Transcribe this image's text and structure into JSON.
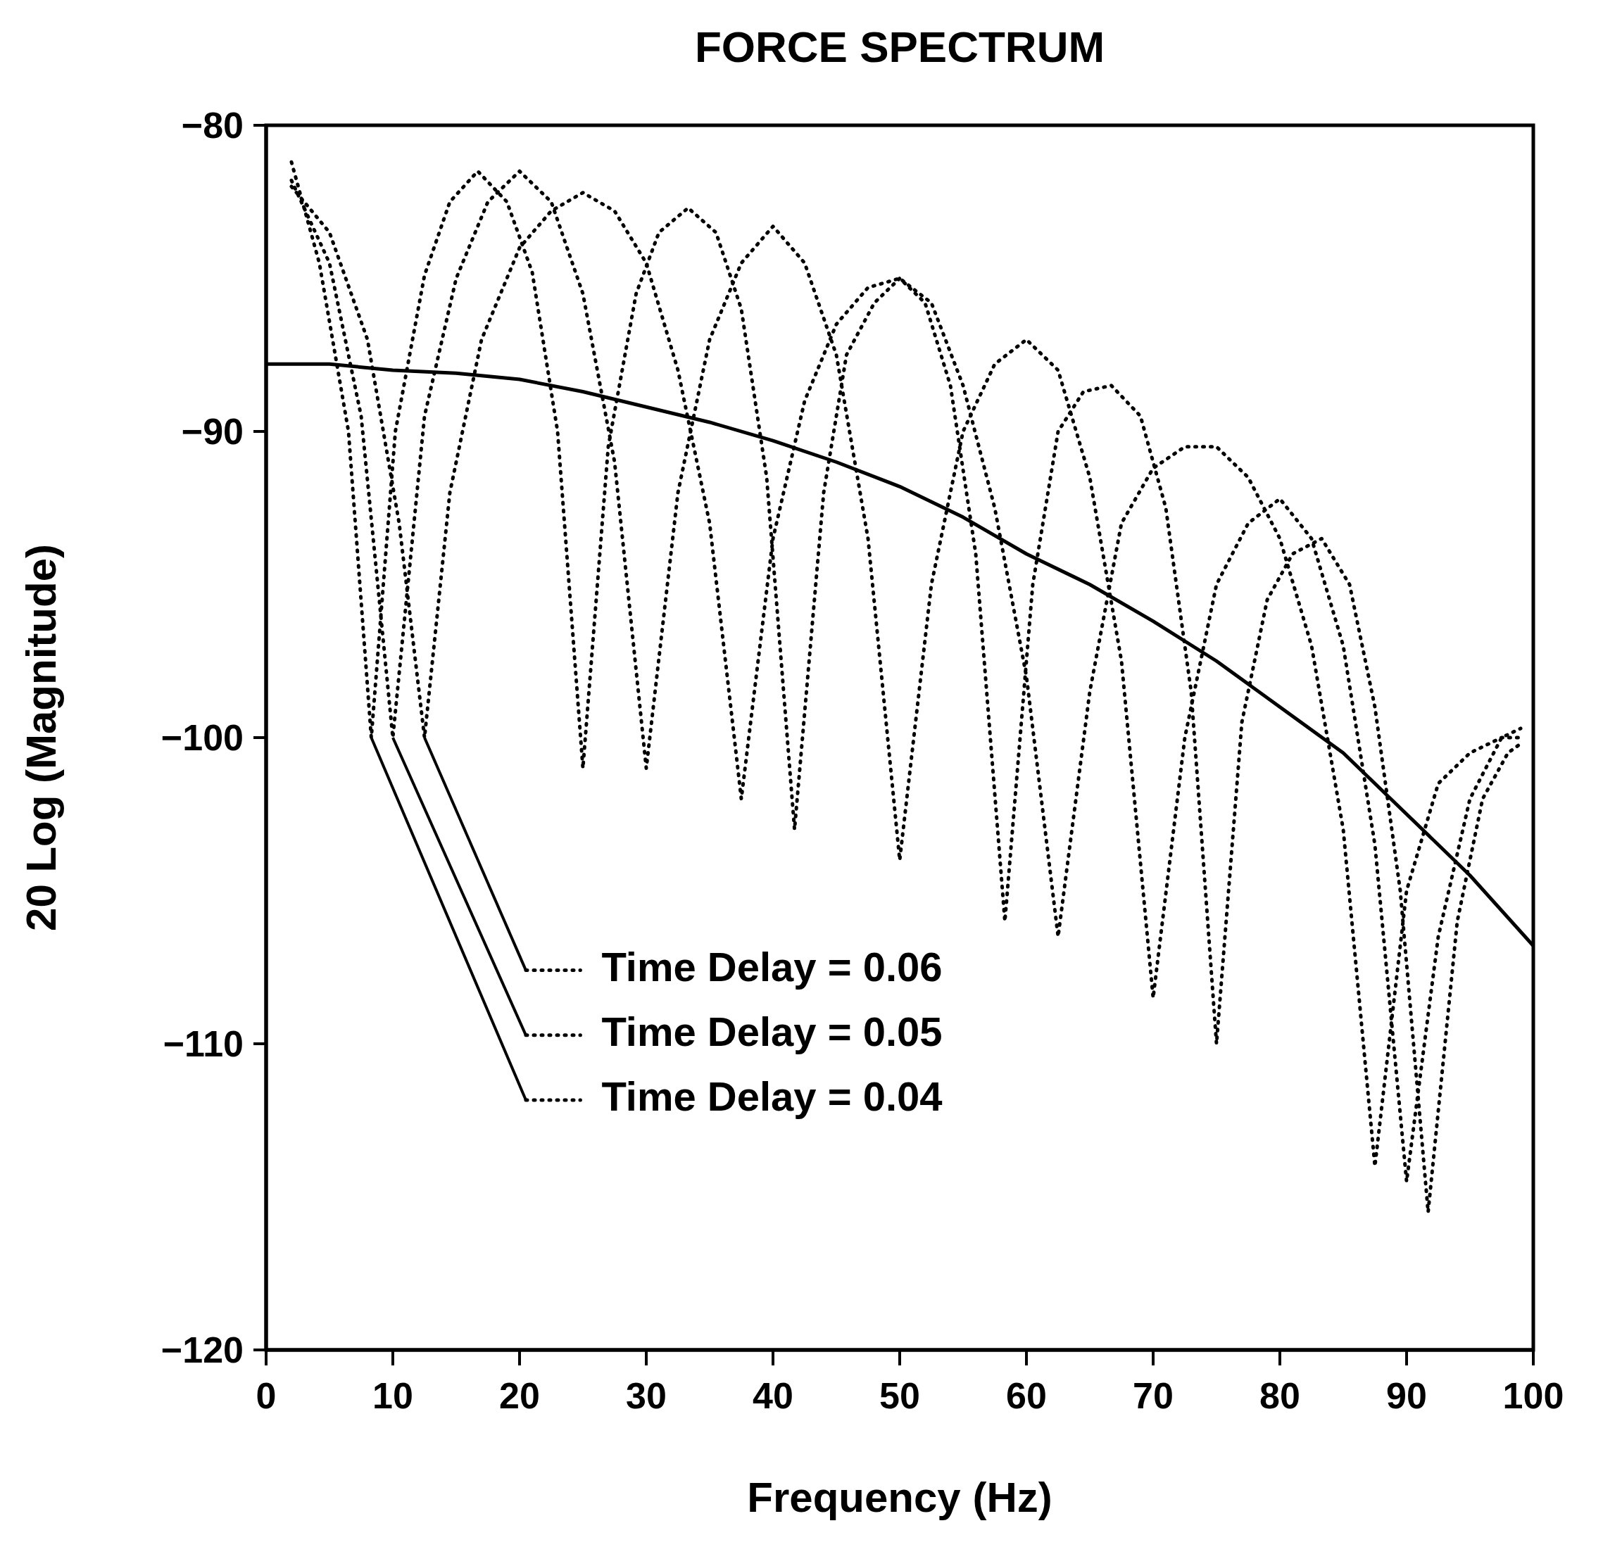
{
  "chart_data": {
    "type": "line",
    "title": "FORCE SPECTRUM",
    "xlabel": "Frequency (Hz)",
    "ylabel": "20 Log (Magnitude)",
    "xlim": [
      0,
      100
    ],
    "ylim": [
      -120,
      -80
    ],
    "xticks": [
      0,
      10,
      20,
      30,
      40,
      50,
      60,
      70,
      80,
      90,
      100
    ],
    "yticks": [
      -120,
      -110,
      -100,
      -90,
      -80
    ],
    "legend": "bottom",
    "marker": "none",
    "series": [
      {
        "color": "#000000",
        "line_style": "solid",
        "x": [
          0,
          5,
          10,
          15,
          20,
          25,
          30,
          35,
          40,
          45,
          50,
          55,
          60,
          65,
          70,
          75,
          80,
          85,
          90,
          95,
          100
        ],
        "values": [
          -87.8,
          -87.8,
          -88,
          -88.1,
          -88.3,
          -88.7,
          -89.2,
          -89.7,
          -90.3,
          -91,
          -91.8,
          -92.8,
          -94,
          -95,
          -96.2,
          -97.5,
          -99,
          -100.5,
          -102.5,
          -104.5,
          -106.8
        ]
      },
      {
        "name": "Time Delay = 0.06",
        "color": "#000000",
        "line_style": "dotted",
        "x": [
          2,
          5,
          8,
          10.5,
          12.5,
          14.5,
          17,
          20,
          22.5,
          25,
          27.5,
          30,
          32.5,
          35,
          37.5,
          40,
          42.5,
          45,
          47.5,
          50,
          52.5,
          55,
          57.5,
          60,
          62.5,
          65,
          67.5,
          70,
          72.5,
          75,
          77.5,
          80,
          82.5,
          85,
          87.5,
          90,
          92.5,
          95,
          97.5,
          99
        ],
        "values": [
          -82,
          -83.5,
          -87,
          -93,
          -100,
          -92,
          -87,
          -84,
          -82.8,
          -82.2,
          -82.8,
          -84.5,
          -88,
          -93,
          -102,
          -93.5,
          -89,
          -86.5,
          -85.3,
          -85,
          -85.8,
          -88.5,
          -92.5,
          -98,
          -106.5,
          -98.5,
          -93,
          -91.2,
          -90.5,
          -90.5,
          -91.5,
          -93.5,
          -97,
          -103,
          -114,
          -105,
          -101.5,
          -100.5,
          -100,
          -100
        ]
      },
      {
        "name": "Time Delay = 0.05",
        "color": "#000000",
        "line_style": "dotted",
        "x": [
          2,
          5,
          7.5,
          10,
          12.5,
          15,
          17.5,
          20,
          22.5,
          25,
          27.5,
          30,
          32.5,
          35,
          37.5,
          40,
          42.5,
          45,
          47.5,
          50,
          52.5,
          55,
          57.5,
          60,
          62.5,
          65,
          67.5,
          70,
          72.5,
          75,
          77.5,
          80,
          82.5,
          85,
          87.5,
          90,
          92.5,
          95,
          97.5,
          99
        ],
        "values": [
          -81.8,
          -84.5,
          -89.5,
          -100,
          -89.5,
          -85,
          -82.5,
          -81.5,
          -82.5,
          -85.5,
          -91,
          -101,
          -92,
          -87,
          -84.5,
          -83.3,
          -84.5,
          -87.5,
          -93.5,
          -104,
          -95,
          -90,
          -87.8,
          -87,
          -88,
          -91.5,
          -97.5,
          -108.5,
          -100,
          -95,
          -93,
          -92.2,
          -93.5,
          -97,
          -103.5,
          -114.5,
          -106.5,
          -102,
          -100,
          -99.7
        ]
      },
      {
        "name": "Time Delay = 0.04",
        "color": "#000000",
        "line_style": "dotted",
        "x": [
          2,
          4.2,
          6.5,
          8.3,
          10.2,
          12.5,
          14.5,
          16.7,
          19,
          21,
          23,
          25,
          27,
          29.2,
          31,
          33.3,
          35.5,
          37.5,
          39.5,
          41.7,
          44,
          45.8,
          48,
          50,
          52,
          54,
          56,
          58.3,
          60.5,
          62.5,
          64.5,
          66.7,
          69,
          71,
          73,
          75,
          77,
          79,
          81,
          83.3,
          85.5,
          87.5,
          89.5,
          91.7,
          94,
          96,
          98,
          99
        ],
        "values": [
          -81.2,
          -84.5,
          -90,
          -100,
          -90,
          -84.9,
          -82.5,
          -81.5,
          -82.5,
          -84.8,
          -90,
          -101,
          -90.5,
          -85.5,
          -83.5,
          -82.7,
          -83.5,
          -86,
          -91.5,
          -103,
          -92,
          -87.5,
          -85.8,
          -85,
          -85.8,
          -88.5,
          -94,
          -106,
          -95,
          -90,
          -88.7,
          -88.5,
          -89.5,
          -92.5,
          -98.5,
          -110,
          -99.5,
          -95.5,
          -94,
          -93.5,
          -95,
          -99,
          -105,
          -115.5,
          -106,
          -102,
          -100.5,
          -100.2
        ]
      }
    ]
  }
}
